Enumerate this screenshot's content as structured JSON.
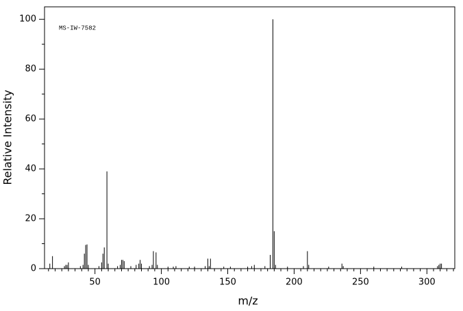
{
  "chart_data": {
    "type": "bar",
    "annotation": "MS-IW-7582",
    "xlabel": "m/z",
    "ylabel": "Relative Intensity",
    "x": [
      16,
      18,
      27,
      28,
      29,
      30,
      39,
      41,
      42,
      43,
      44,
      45,
      53,
      55,
      56,
      57,
      59,
      60,
      67,
      69,
      70,
      71,
      72,
      77,
      81,
      83,
      84,
      85,
      91,
      93,
      94,
      96,
      97,
      105,
      109,
      111,
      121,
      125,
      133,
      135,
      136,
      137,
      147,
      152,
      165,
      168,
      170,
      178,
      182,
      184,
      185,
      186,
      195,
      207,
      210,
      211,
      226,
      236,
      237,
      260,
      281,
      308,
      309,
      310,
      311
    ],
    "values": [
      2,
      5,
      1,
      1.5,
      1.5,
      2.5,
      1,
      1.5,
      6,
      9.5,
      9.7,
      1.5,
      1,
      2.5,
      6,
      8.5,
      39,
      2,
      1,
      1.5,
      3.5,
      3.5,
      3,
      1,
      1.5,
      2,
      3.5,
      2,
      1,
      1.5,
      7,
      6.5,
      1.5,
      0.8,
      0.8,
      1,
      0.8,
      0.8,
      1,
      4,
      1,
      4,
      0.8,
      0.8,
      0.8,
      1,
      1.5,
      1,
      5.5,
      100,
      15,
      1.5,
      0.8,
      1,
      7,
      1.5,
      0.8,
      2,
      1,
      0.8,
      0.8,
      1,
      1.5,
      2,
      2
    ],
    "color": "#000000",
    "xlim": [
      12,
      321
    ],
    "ylim": [
      0,
      105
    ],
    "xticks": [
      50,
      100,
      150,
      200,
      250,
      300
    ],
    "yticks": [
      0,
      20,
      40,
      60,
      80,
      100
    ],
    "xminorticks": [
      15,
      20,
      25,
      30,
      35,
      40,
      45,
      55,
      60,
      65,
      70,
      75,
      80,
      85,
      90,
      95,
      105,
      110,
      115,
      120,
      125,
      130,
      135,
      140,
      145,
      155,
      160,
      165,
      170,
      175,
      180,
      185,
      190,
      195,
      205,
      210,
      215,
      220,
      225,
      230,
      235,
      240,
      245,
      255,
      260,
      265,
      270,
      275,
      280,
      285,
      290,
      295,
      305,
      310,
      315,
      320
    ],
    "yminorticks": [
      10,
      30,
      50,
      70,
      90
    ]
  }
}
